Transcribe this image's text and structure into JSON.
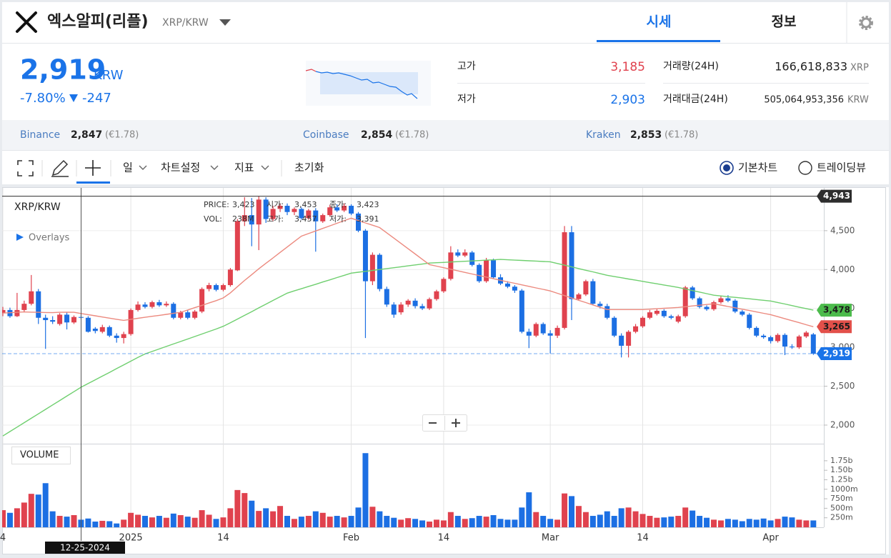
{
  "header": {
    "name": "엑스알피(리플)",
    "pair": "XRP/KRW",
    "tabs": [
      "시세",
      "정보"
    ]
  },
  "ticker": {
    "price": "2,919",
    "currency": "KRW",
    "change_rate": "-7.80%",
    "change": "-247",
    "stats": [
      {
        "label": "고가",
        "value": "3,185"
      },
      {
        "label": "저가",
        "value": "2,903"
      },
      {
        "label": "거래량(24H)",
        "value": "166,618,833",
        "unit": "XRP"
      },
      {
        "label": "거래대금(24H)",
        "value": "505,064,953,356",
        "unit": "KRW"
      }
    ]
  },
  "exchanges": [
    {
      "name": "Binance",
      "price": "2,847",
      "eur": "(€1.78)"
    },
    {
      "name": "Coinbase",
      "price": "2,854",
      "eur": "(€1.78)"
    },
    {
      "name": "Kraken",
      "price": "2,853",
      "eur": "(€1.78)"
    }
  ],
  "toolbar": {
    "menus": [
      "일",
      "차트설정",
      "지표"
    ],
    "reset": "초기화",
    "modes": [
      "기본차트",
      "트레이딩뷰"
    ]
  },
  "chart_data": {
    "type": "candlestick",
    "title": "XRP/KRW",
    "overlays": "Overlays",
    "volume_title": "VOLUME",
    "categories": [
      "4",
      null,
      null,
      null,
      null,
      null,
      null,
      null,
      null,
      null,
      null,
      null,
      null,
      null,
      null,
      null,
      null,
      null,
      "2025",
      null,
      null,
      null,
      null,
      null,
      null,
      null,
      null,
      null,
      null,
      null,
      null,
      "14",
      null,
      null,
      null,
      null,
      null,
      null,
      null,
      null,
      null,
      null,
      null,
      null,
      null,
      null,
      null,
      null,
      null,
      "Feb",
      null,
      null,
      null,
      null,
      null,
      null,
      null,
      null,
      null,
      null,
      null,
      null,
      "14",
      null,
      null,
      null,
      null,
      null,
      null,
      null,
      null,
      null,
      null,
      null,
      null,
      null,
      null,
      "Mar",
      null,
      null,
      null,
      null,
      null,
      null,
      null,
      null,
      null,
      null,
      null,
      null,
      "14",
      null,
      null,
      null,
      null,
      null,
      null,
      null,
      null,
      null,
      null,
      null,
      null,
      null,
      null,
      null,
      null,
      null,
      "Apr",
      null,
      null,
      null,
      null,
      null,
      null
    ],
    "ohlc": [
      [
        3440,
        3520,
        3400,
        3480
      ],
      [
        3480,
        3510,
        3380,
        3400
      ],
      [
        3400,
        3700,
        3390,
        3480
      ],
      [
        3480,
        3600,
        3450,
        3560
      ],
      [
        3560,
        3930,
        3540,
        3720
      ],
      [
        3720,
        3750,
        3300,
        3380
      ],
      [
        3380,
        3420,
        2980,
        3350
      ],
      [
        3350,
        3400,
        3300,
        3330
      ],
      [
        3300,
        3440,
        3280,
        3420
      ],
      [
        3420,
        3450,
        3230,
        3320
      ],
      [
        3320,
        3410,
        3300,
        3390
      ],
      [
        3390,
        3420,
        3360,
        3380
      ],
      [
        3380,
        3400,
        3190,
        3200
      ],
      [
        3240,
        3260,
        3180,
        3210
      ],
      [
        3200,
        3290,
        3180,
        3260
      ],
      [
        3260,
        3280,
        3130,
        3150
      ],
      [
        3150,
        3180,
        3060,
        3120
      ],
      [
        3120,
        3200,
        3050,
        3170
      ],
      [
        3170,
        3500,
        3150,
        3480
      ],
      [
        3480,
        3590,
        3460,
        3550
      ],
      [
        3550,
        3580,
        3500,
        3520
      ],
      [
        3520,
        3600,
        3500,
        3580
      ],
      [
        3580,
        3610,
        3520,
        3540
      ],
      [
        3540,
        3590,
        3520,
        3560
      ],
      [
        3560,
        3580,
        3360,
        3380
      ],
      [
        3380,
        3470,
        3360,
        3450
      ],
      [
        3450,
        3480,
        3360,
        3380
      ],
      [
        3380,
        3480,
        3360,
        3460
      ],
      [
        3460,
        3770,
        3440,
        3750
      ],
      [
        3750,
        3830,
        3720,
        3800
      ],
      [
        3800,
        3820,
        3720,
        3740
      ],
      [
        3740,
        3820,
        3720,
        3800
      ],
      [
        3800,
        4020,
        3780,
        4000
      ],
      [
        3990,
        4650,
        3980,
        4620
      ],
      [
        4620,
        4930,
        4560,
        4700
      ],
      [
        4700,
        4920,
        4300,
        4580
      ],
      [
        4580,
        4943,
        4250,
        4900
      ],
      [
        4900,
        4930,
        4600,
        4650
      ],
      [
        4650,
        4820,
        4620,
        4780
      ],
      [
        4780,
        4850,
        4740,
        4820
      ],
      [
        4820,
        4850,
        4700,
        4740
      ],
      [
        4740,
        4800,
        4700,
        4780
      ],
      [
        4780,
        4800,
        4640,
        4660
      ],
      [
        4660,
        4780,
        4640,
        4760
      ],
      [
        4760,
        4790,
        4230,
        4620
      ],
      [
        4620,
        4720,
        4600,
        4700
      ],
      [
        4700,
        4830,
        4680,
        4800
      ],
      [
        4800,
        4840,
        4740,
        4760
      ],
      [
        4760,
        4850,
        4740,
        4820
      ],
      [
        4820,
        4840,
        4700,
        4720
      ],
      [
        4720,
        4740,
        4480,
        4500
      ],
      [
        4500,
        4520,
        3120,
        3850
      ],
      [
        3850,
        4220,
        3800,
        4190
      ],
      [
        4190,
        4210,
        3720,
        3750
      ],
      [
        3750,
        3780,
        3520,
        3550
      ],
      [
        3550,
        3580,
        3380,
        3420
      ],
      [
        3450,
        3580,
        3420,
        3550
      ],
      [
        3550,
        3620,
        3520,
        3600
      ],
      [
        3600,
        3630,
        3500,
        3530
      ],
      [
        3530,
        3560,
        3480,
        3500
      ],
      [
        3500,
        3640,
        3480,
        3620
      ],
      [
        3620,
        3740,
        3600,
        3720
      ],
      [
        3720,
        3900,
        3700,
        3880
      ],
      [
        3880,
        4300,
        3860,
        4220
      ],
      [
        4220,
        4260,
        4160,
        4180
      ],
      [
        4180,
        4260,
        4160,
        4220
      ],
      [
        4220,
        4240,
        4040,
        4060
      ],
      [
        4060,
        4080,
        3830,
        3850
      ],
      [
        3850,
        4150,
        3830,
        4120
      ],
      [
        4120,
        4140,
        3880,
        3900
      ],
      [
        3900,
        3940,
        3800,
        3820
      ],
      [
        3820,
        3850,
        3760,
        3780
      ],
      [
        3780,
        3800,
        3700,
        3730
      ],
      [
        3730,
        3750,
        3180,
        3200
      ],
      [
        3200,
        3240,
        2990,
        3150
      ],
      [
        3150,
        3320,
        3130,
        3300
      ],
      [
        3300,
        3320,
        3160,
        3180
      ],
      [
        3180,
        3220,
        2920,
        3150
      ],
      [
        3150,
        3280,
        3120,
        3250
      ],
      [
        3250,
        4560,
        3230,
        4480
      ],
      [
        4480,
        4560,
        3350,
        3620
      ],
      [
        3620,
        3700,
        3600,
        3680
      ],
      [
        3680,
        3870,
        3660,
        3850
      ],
      [
        3850,
        3880,
        3540,
        3560
      ],
      [
        3560,
        3590,
        3500,
        3530
      ],
      [
        3530,
        3560,
        3360,
        3380
      ],
      [
        3380,
        3400,
        3130,
        3150
      ],
      [
        3150,
        3180,
        2870,
        3020
      ],
      [
        3020,
        3220,
        2870,
        3200
      ],
      [
        3200,
        3300,
        3180,
        3270
      ],
      [
        3270,
        3400,
        3250,
        3380
      ],
      [
        3380,
        3480,
        3360,
        3450
      ],
      [
        3430,
        3490,
        3410,
        3470
      ],
      [
        3470,
        3490,
        3380,
        3400
      ],
      [
        3400,
        3420,
        3360,
        3380
      ],
      [
        3330,
        3420,
        3310,
        3400
      ],
      [
        3400,
        3790,
        3380,
        3770
      ],
      [
        3770,
        3790,
        3610,
        3630
      ],
      [
        3630,
        3650,
        3500,
        3520
      ],
      [
        3520,
        3540,
        3470,
        3490
      ],
      [
        3490,
        3600,
        3470,
        3580
      ],
      [
        3580,
        3660,
        3560,
        3630
      ],
      [
        3630,
        3670,
        3580,
        3600
      ],
      [
        3600,
        3620,
        3440,
        3460
      ],
      [
        3460,
        3480,
        3400,
        3420
      ],
      [
        3420,
        3440,
        3230,
        3250
      ],
      [
        3250,
        3270,
        3130,
        3150
      ],
      [
        3150,
        3170,
        3110,
        3130
      ],
      [
        3130,
        3150,
        3050,
        3080
      ],
      [
        3080,
        3180,
        3060,
        3160
      ],
      [
        3160,
        3180,
        2900,
        3010
      ],
      [
        3010,
        3040,
        2980,
        3000
      ],
      [
        3000,
        3160,
        2980,
        3140
      ],
      [
        3140,
        3210,
        3120,
        3190
      ],
      [
        3166,
        3185,
        2903,
        2919
      ]
    ],
    "volume": [
      450,
      380,
      500,
      650,
      880,
      860,
      1160,
      420,
      300,
      280,
      320,
      200,
      230,
      150,
      170,
      160,
      100,
      200,
      380,
      330,
      300,
      260,
      300,
      250,
      360,
      320,
      280,
      250,
      450,
      330,
      220,
      260,
      500,
      980,
      900,
      700,
      430,
      500,
      420,
      560,
      300,
      220,
      280,
      300,
      420,
      380,
      280,
      300,
      260,
      300,
      520,
      1950,
      540,
      420,
      300,
      250,
      200,
      240,
      220,
      180,
      150,
      200,
      180,
      400,
      300,
      220,
      240,
      300,
      280,
      320,
      220,
      200,
      200,
      520,
      920,
      400,
      300,
      220,
      200,
      890,
      820,
      560,
      400,
      300,
      330,
      420,
      300,
      500,
      520,
      420,
      350,
      300,
      250,
      260,
      280,
      300,
      520,
      440,
      300,
      250,
      200,
      180,
      220,
      200,
      160,
      220,
      200,
      230,
      180,
      220,
      280,
      260,
      200,
      180,
      180
    ],
    "up_color": "#e0424e",
    "down_color": "#1c6fe3",
    "series": [
      {
        "color": "#6fcf6f",
        "values": [
          1860,
          1917,
          1974,
          2031,
          2088,
          2145,
          2202,
          2259,
          2316,
          2373,
          2430,
          2487,
          2534,
          2582,
          2630,
          2678,
          2726,
          2774,
          2822,
          2870,
          2915,
          2947,
          2979,
          3011,
          3043,
          3075,
          3107,
          3139,
          3171,
          3203,
          3235,
          3270,
          3315,
          3363,
          3411,
          3459,
          3507,
          3555,
          3603,
          3650,
          3697,
          3726,
          3754,
          3783,
          3811,
          3840,
          3868,
          3897,
          3925,
          3954,
          3966,
          3977,
          3989,
          4001,
          4013,
          4024,
          4036,
          4048,
          4060,
          4071,
          4083,
          4088,
          4092,
          4097,
          4102,
          4106,
          4111,
          4116,
          4121,
          4125,
          4130,
          4126,
          4121,
          4117,
          4113,
          4109,
          4104,
          4100,
          4078,
          4057,
          4035,
          4013,
          3991,
          3970,
          3948,
          3926,
          3910,
          3895,
          3879,
          3864,
          3848,
          3832,
          3817,
          3801,
          3786,
          3770,
          3750,
          3730,
          3710,
          3690,
          3670,
          3661,
          3651,
          3642,
          3633,
          3624,
          3614,
          3605,
          3596,
          3576,
          3557,
          3537,
          3517,
          3498,
          3478
        ]
      },
      {
        "color": "#ec8a7f",
        "values": [
          3440,
          3445,
          3450,
          3455,
          3452,
          3450,
          3448,
          3446,
          3450,
          3452,
          3450,
          3435,
          3420,
          3405,
          3390,
          3375,
          3360,
          3347,
          3360,
          3373,
          3386,
          3399,
          3411,
          3424,
          3437,
          3450,
          3480,
          3510,
          3540,
          3570,
          3600,
          3635,
          3700,
          3780,
          3860,
          3935,
          4010,
          4080,
          4150,
          4220,
          4290,
          4360,
          4430,
          4463,
          4496,
          4529,
          4562,
          4595,
          4628,
          4660,
          4630,
          4600,
          4570,
          4540,
          4472,
          4404,
          4336,
          4268,
          4200,
          4132,
          4064,
          4044,
          4024,
          4004,
          3983,
          3963,
          3943,
          3923,
          3903,
          3882,
          3862,
          3842,
          3823,
          3803,
          3784,
          3764,
          3745,
          3725,
          3695,
          3665,
          3635,
          3605,
          3575,
          3545,
          3515,
          3485,
          3485,
          3485,
          3485,
          3485,
          3485,
          3491,
          3496,
          3502,
          3507,
          3513,
          3522,
          3532,
          3541,
          3551,
          3560,
          3543,
          3525,
          3508,
          3490,
          3473,
          3455,
          3438,
          3420,
          3394,
          3368,
          3343,
          3317,
          3291,
          3265
        ]
      }
    ],
    "ylim": [
      1770,
      5050
    ],
    "yticks": [
      {
        "value": 2000,
        "label": "2,000"
      },
      {
        "value": 2500,
        "label": "2,500"
      },
      {
        "value": 3000,
        "label": "3,000"
      },
      {
        "value": 3500,
        "label": "3,500"
      },
      {
        "value": 4000,
        "label": "4,000"
      },
      {
        "value": 4500,
        "label": "4,500"
      }
    ],
    "volume_ylim": [
      0,
      2180
    ],
    "volume_ticks": [
      {
        "value": 250,
        "label": "250m"
      },
      {
        "value": 500,
        "label": "500m"
      },
      {
        "value": 750,
        "label": "750m"
      },
      {
        "value": 1000,
        "label": "1000m"
      },
      {
        "value": 1250,
        "label": "1.25b"
      },
      {
        "value": 1500,
        "label": "1.50b"
      },
      {
        "value": 1750,
        "label": "1.75b"
      }
    ],
    "price_markers": [
      {
        "value": 4943,
        "label": "4,943",
        "color": "#2d2d2d",
        "text_color": "#ffffff",
        "line": "solid"
      },
      {
        "value": 3478,
        "label": "3,478",
        "color": "#4cbb4c",
        "text_color": "#1b1b1b"
      },
      {
        "value": 3265,
        "label": "3,265",
        "color": "#e2504a",
        "text_color": "#1b1b1b"
      },
      {
        "value": 2919,
        "label": "2,919",
        "color": "#1a73e8",
        "text_color": "#ffffff",
        "line": "dashed"
      }
    ],
    "crosshair_label": "12-25-2024",
    "tooltip": [
      [
        "PRICE:",
        "3,423",
        "시가:",
        "3,453",
        "종가:",
        "3,423"
      ],
      [
        "VOL:",
        "238M",
        "고가:",
        "3,457",
        "저가:",
        "3,391"
      ]
    ],
    "grid": true
  }
}
